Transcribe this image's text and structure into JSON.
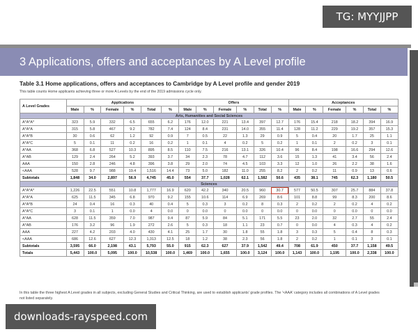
{
  "overlay": {
    "tg_badge": "TG: MYYJJPP",
    "watermark": "downloads-rayspeed.com"
  },
  "document": {
    "section_title": "3 Applications, offers and acceptances by A Level profile",
    "table_title": "Table 3.1 Home applications, offers and acceptances to Cambridge by A Level profile and gender 2019",
    "table_subtitle": "This table counts Home applicants achieving three or more A Levels by the end of the 2019 admissions cycle only.",
    "footnote": "In this table the three highest A Level grades in all subjects, excluding General Studies and Critical Thinking, are used to establish applicants' grade profiles. The '<AAA' category includes all combinations of A Level grades not listed separately."
  },
  "table": {
    "header": {
      "grades_label": "A Level Grades",
      "groups": [
        "Applications",
        "Offers",
        "Acceptances"
      ],
      "subcols": [
        "Male",
        "%",
        "Female",
        "%",
        "Total",
        "%"
      ]
    },
    "sections": [
      {
        "name": "Arts, Humanities and Social Sciences",
        "rows": [
          {
            "grade": "A*A*A*",
            "values": [
              "323",
              "5.9",
              "332",
              "6.5",
              "655",
              "6.2",
              "176",
              "12.0",
              "221",
              "13.4",
              "397",
              "12.7",
              "176",
              "15.4",
              "218",
              "18.2",
              "394",
              "16.9"
            ]
          },
          {
            "grade": "A*A*A",
            "values": [
              "315",
              "5.8",
              "467",
              "9.2",
              "782",
              "7.4",
              "124",
              "8.4",
              "231",
              "14.0",
              "355",
              "11.4",
              "128",
              "11.2",
              "229",
              "19.2",
              "357",
              "15.3"
            ]
          },
          {
            "grade": "A*A*B",
            "values": [
              "30",
              "0.6",
              "62",
              "1.2",
              "92",
              "0.9",
              "7",
              "0.5",
              "22",
              "1.3",
              "29",
              "0.9",
              "5",
              "0.4",
              "20",
              "1.7",
              "25",
              "1.1"
            ]
          },
          {
            "grade": "A*A*C",
            "values": [
              "5",
              "0.1",
              "11",
              "0.2",
              "16",
              "0.2",
              "1",
              "0.1",
              "4",
              "0.2",
              "5",
              "0.2",
              "1",
              "0.1",
              "2",
              "0.2",
              "3",
              "0.1"
            ]
          },
          {
            "grade": "A*AA",
            "values": [
              "368",
              "6.8",
              "527",
              "10.3",
              "895",
              "8.5",
              "110",
              "7.5",
              "216",
              "13.1",
              "326",
              "10.4",
              "96",
              "8.4",
              "198",
              "16.6",
              "294",
              "12.6"
            ]
          },
          {
            "grade": "A*AB",
            "values": [
              "129",
              "2.4",
              "264",
              "5.2",
              "393",
              "3.7",
              "34",
              "2.3",
              "78",
              "4.7",
              "112",
              "3.6",
              "15",
              "1.3",
              "41",
              "3.4",
              "56",
              "2.4"
            ]
          },
          {
            "grade": "AAA",
            "values": [
              "150",
              "2.8",
              "246",
              "4.8",
              "396",
              "3.8",
              "29",
              "2.0",
              "74",
              "4.5",
              "103",
              "3.3",
              "12",
              "1.0",
              "26",
              "2.2",
              "38",
              "1.6"
            ]
          },
          {
            "grade": "<AAA",
            "values": [
              "528",
              "9.7",
              "988",
              "19.4",
              "1,516",
              "14.4",
              "73",
              "5.0",
              "182",
              "11.0",
              "255",
              "8.2",
              "2",
              "0.2",
              "11",
              "0.9",
              "13",
              "0.6"
            ]
          }
        ],
        "subtotal": {
          "label": "Subtotals",
          "values": [
            "1,848",
            "34.0",
            "2,897",
            "56.9",
            "4,745",
            "45.0",
            "554",
            "37.7",
            "1,028",
            "62.1",
            "1,582",
            "50.6",
            "435",
            "38.1",
            "745",
            "62.3",
            "1,180",
            "50.5"
          ]
        }
      },
      {
        "name": "Sciences",
        "rows": [
          {
            "grade": "A*A*A*",
            "values": [
              "1,226",
              "22.5",
              "551",
              "10.8",
              "1,777",
              "16.9",
              "620",
              "42.2",
              "340",
              "20.5",
              "960",
              "30.7",
              "577",
              "50.5",
              "307",
              "25.7",
              "884",
              "37.8"
            ]
          },
          {
            "grade": "A*A*A",
            "values": [
              "625",
              "11.5",
              "345",
              "6.8",
              "970",
              "9.2",
              "155",
              "10.6",
              "114",
              "6.9",
              "269",
              "8.6",
              "101",
              "8.8",
              "99",
              "8.3",
              "200",
              "8.6"
            ]
          },
          {
            "grade": "A*A*B",
            "values": [
              "24",
              "0.4",
              "16",
              "0.3",
              "40",
              "0.4",
              "5",
              "0.3",
              "3",
              "0.2",
              "8",
              "0.3",
              "2",
              "0.2",
              "2",
              "0.2",
              "4",
              "0.2"
            ]
          },
          {
            "grade": "A*A*C",
            "values": [
              "3",
              "0.1",
              "1",
              "0.0",
              "4",
              "0.0",
              "0",
              "0.0",
              "0",
              "0.0",
              "0",
              "0.0",
              "0",
              "0.0",
              "0",
              "0.0",
              "0",
              "0.0"
            ]
          },
          {
            "grade": "A*AA",
            "values": [
              "628",
              "11.5",
              "359",
              "7.0",
              "987",
              "9.4",
              "87",
              "5.9",
              "84",
              "5.1",
              "171",
              "5.5",
              "23",
              "2.0",
              "32",
              "2.7",
              "55",
              "2.4"
            ]
          },
          {
            "grade": "A*AB",
            "values": [
              "176",
              "3.2",
              "96",
              "1.9",
              "272",
              "2.6",
              "5",
              "0.3",
              "18",
              "1.1",
              "23",
              "0.7",
              "0",
              "0.0",
              "4",
              "0.3",
              "4",
              "0.2"
            ]
          },
          {
            "grade": "AAA",
            "values": [
              "227",
              "4.2",
              "203",
              "4.0",
              "430",
              "4.1",
              "25",
              "1.7",
              "30",
              "1.8",
              "55",
              "1.8",
              "3",
              "0.3",
              "5",
              "0.4",
              "8",
              "0.3"
            ]
          },
          {
            "grade": "<AAA",
            "values": [
              "686",
              "12.6",
              "627",
              "12.3",
              "1,313",
              "12.5",
              "18",
              "1.2",
              "38",
              "2.3",
              "56",
              "1.8",
              "2",
              "0.2",
              "1",
              "0.1",
              "3",
              "0.1"
            ]
          }
        ],
        "subtotal": {
          "label": "Subtotals",
          "values": [
            "3,595",
            "66.0",
            "2,198",
            "43.1",
            "5,793",
            "55.0",
            "915",
            "62.3",
            "627",
            "37.9",
            "1,542",
            "49.4",
            "708",
            "61.9",
            "450",
            "37.7",
            "1,158",
            "49.5"
          ]
        }
      }
    ],
    "totals": {
      "label": "Totals",
      "values": [
        "5,443",
        "100.0",
        "5,095",
        "100.0",
        "10,538",
        "100.0",
        "1,469",
        "100.0",
        "1,655",
        "100.0",
        "3,124",
        "100.0",
        "1,143",
        "100.0",
        "1,195",
        "100.0",
        "2,338",
        "100.0"
      ]
    },
    "highlighted_cell": {
      "section": "Sciences",
      "grade": "A*A*A*",
      "column": "Offers Total %",
      "value": "30.7",
      "color": "#c0392b"
    }
  }
}
